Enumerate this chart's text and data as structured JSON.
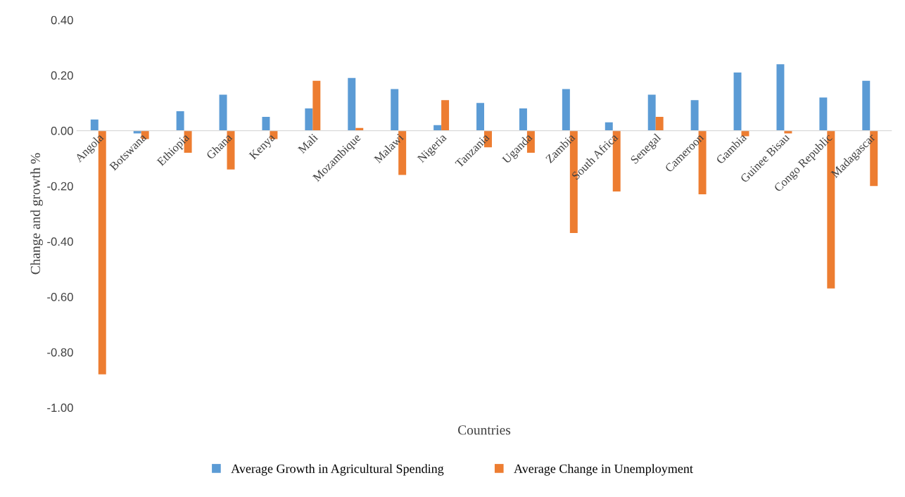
{
  "chart_data": {
    "type": "bar",
    "xlabel": "Countries",
    "ylabel": "Change and growth %",
    "categories": [
      "Angola",
      "Botswana",
      "Ethiopia",
      "Ghana",
      "Kenya",
      "Mali",
      "Mozambique",
      "Malawi",
      "Nigeria",
      "Tanzania",
      "Uganda",
      "Zambia",
      "South Africa",
      "Senegal",
      "Cameroon",
      "Gambia",
      "Guinee Bisau",
      "Congo Republic",
      "Madagascar"
    ],
    "series": [
      {
        "name": "Average Growth in Agricultural Spending",
        "color": "#5b9bd5",
        "values": [
          0.04,
          -0.01,
          0.07,
          0.13,
          0.05,
          0.08,
          0.19,
          0.15,
          0.02,
          0.1,
          0.08,
          0.15,
          0.03,
          0.13,
          0.11,
          0.21,
          0.24,
          0.12,
          0.18
        ]
      },
      {
        "name": "Average Change in Unemployment",
        "color": "#ed7d31",
        "values": [
          -0.88,
          -0.03,
          -0.08,
          -0.14,
          -0.03,
          0.18,
          0.01,
          -0.16,
          0.11,
          -0.06,
          -0.08,
          -0.37,
          -0.22,
          0.05,
          -0.23,
          -0.02,
          -0.01,
          -0.57,
          -0.2
        ]
      }
    ],
    "ylim": [
      -1.0,
      0.4
    ],
    "yticks": [
      {
        "value": -1.0,
        "label": "-1.00"
      },
      {
        "value": -0.8,
        "label": "-0.80"
      },
      {
        "value": -0.6,
        "label": "-0.60"
      },
      {
        "value": -0.4,
        "label": "-0.40"
      },
      {
        "value": -0.2,
        "label": "-0.20"
      },
      {
        "value": 0.0,
        "label": "0.00"
      },
      {
        "value": 0.2,
        "label": "0.20"
      },
      {
        "value": 0.4,
        "label": "0.40"
      }
    ],
    "grid": false,
    "legend": "bottom"
  }
}
